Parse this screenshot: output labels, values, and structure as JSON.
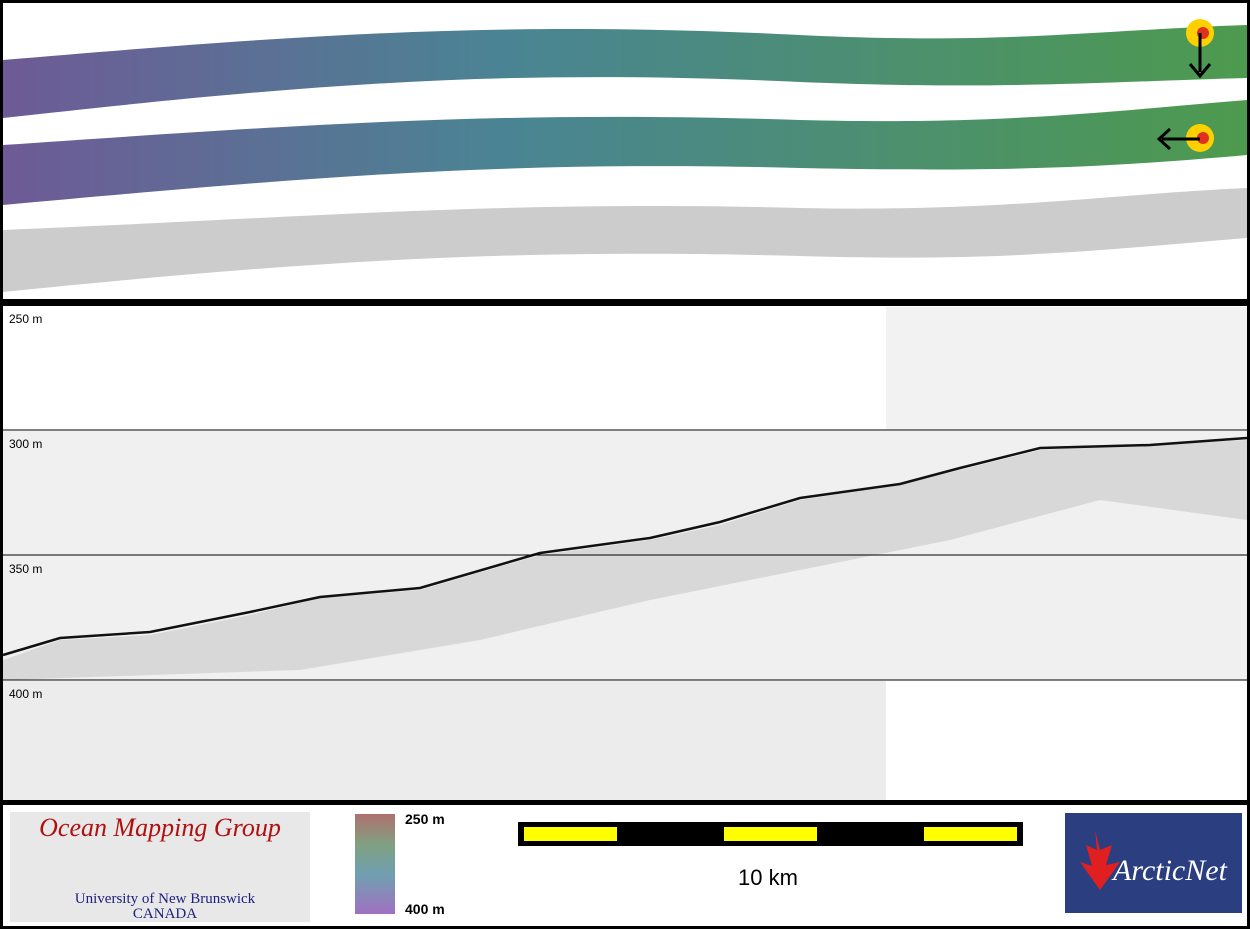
{
  "profile": {
    "depth_labels": [
      "250 m",
      "300 m",
      "350 m",
      "400 m"
    ]
  },
  "colorbar": {
    "top_label": "250 m",
    "bottom_label": "400 m"
  },
  "scale_bar": {
    "label": "10 km"
  },
  "logos": {
    "ocean_mapping_group": {
      "title": "Ocean Mapping Group",
      "line1": "University of New Brunswick",
      "line2": "CANADA"
    },
    "arcticnet": "ArcticNet"
  }
}
